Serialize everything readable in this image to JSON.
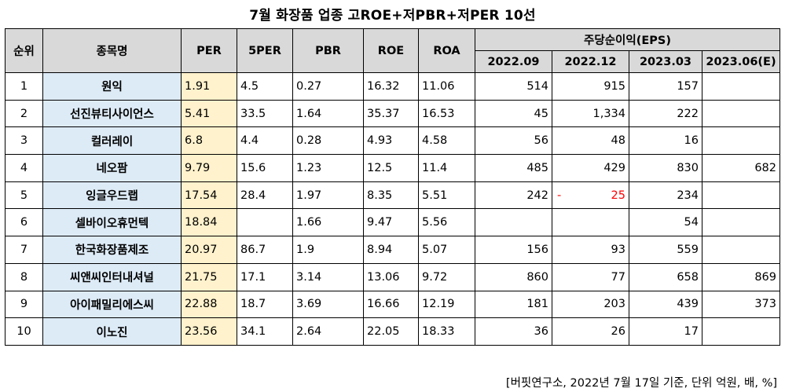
{
  "title": "7월  화장품 업종 고ROE+저PBR+저PER 10선",
  "headers": {
    "rank": "순위",
    "name": "종목명",
    "per": "PER",
    "per5": "5PER",
    "pbr": "PBR",
    "roe": "ROE",
    "roa": "ROA",
    "eps_group": "주당순이익(EPS)",
    "eps_periods": [
      "2022.09",
      "2022.12",
      "2023.03",
      "2023.06(E)"
    ]
  },
  "rows": [
    {
      "rank": "1",
      "name": "원익",
      "per": "1.91",
      "per5": "4.5",
      "pbr": "0.27",
      "roe": "16.32",
      "roa": "11.06",
      "eps": [
        "514",
        "915",
        "157",
        ""
      ]
    },
    {
      "rank": "2",
      "name": "선진뷰티사이언스",
      "per": "5.41",
      "per5": "33.5",
      "pbr": "1.64",
      "roe": "35.37",
      "roa": "16.53",
      "eps": [
        "45",
        "1,334",
        "222",
        ""
      ]
    },
    {
      "rank": "3",
      "name": "컬러레이",
      "per": "6.8",
      "per5": "4.4",
      "pbr": "0.28",
      "roe": "4.93",
      "roa": "4.58",
      "eps": [
        "56",
        "48",
        "16",
        ""
      ]
    },
    {
      "rank": "4",
      "name": "네오팜",
      "per": "9.79",
      "per5": "15.6",
      "pbr": "1.23",
      "roe": "12.5",
      "roa": "11.4",
      "eps": [
        "485",
        "429",
        "830",
        "682"
      ]
    },
    {
      "rank": "5",
      "name": "잉글우드랩",
      "per": "17.54",
      "per5": "28.4",
      "pbr": "1.97",
      "roe": "8.35",
      "roa": "5.51",
      "eps": [
        "242",
        "25",
        "234",
        ""
      ],
      "neg_index": 1,
      "neg_sign": "-"
    },
    {
      "rank": "6",
      "name": "셀바이오휴먼텍",
      "per": "18.84",
      "per5": "",
      "pbr": "1.66",
      "roe": "9.47",
      "roa": "5.56",
      "eps": [
        "",
        "",
        "54",
        ""
      ]
    },
    {
      "rank": "7",
      "name": "한국화장품제조",
      "per": "20.97",
      "per5": "86.7",
      "pbr": "1.9",
      "roe": "8.94",
      "roa": "5.07",
      "eps": [
        "156",
        "93",
        "559",
        ""
      ]
    },
    {
      "rank": "8",
      "name": "씨앤씨인터내셔널",
      "per": "21.75",
      "per5": "17.1",
      "pbr": "3.14",
      "roe": "13.06",
      "roa": "9.72",
      "eps": [
        "860",
        "77",
        "658",
        "869"
      ]
    },
    {
      "rank": "9",
      "name": "아이패밀리에스씨",
      "per": "22.88",
      "per5": "18.7",
      "pbr": "3.69",
      "roe": "16.66",
      "roa": "12.19",
      "eps": [
        "181",
        "203",
        "439",
        "373"
      ]
    },
    {
      "rank": "10",
      "name": "이노진",
      "per": "23.56",
      "per5": "34.1",
      "pbr": "2.64",
      "roe": "22.05",
      "roa": "18.33",
      "eps": [
        "36",
        "26",
        "17",
        ""
      ]
    }
  ],
  "footer": "[버핏연구소, 2022년 7월 17일 기준, 단위 억원, 배, %]",
  "colors": {
    "header_bg": "#d9d9d9",
    "name_bg": "#ddebf7",
    "per_bg": "#fff2cc",
    "negative": "#ff0000"
  }
}
